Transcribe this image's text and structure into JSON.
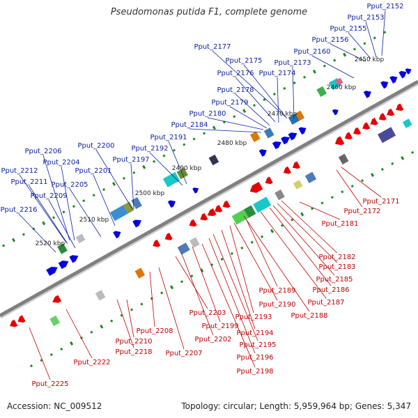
{
  "title": "Pseudomonas putida F1, complete genome",
  "footer": {
    "accession": "Accession: NC_009512",
    "topology": "Topology: circular; Length: 5,959,964 bp; Genes: 5,347"
  },
  "colors": {
    "backbone": "#808080",
    "forward": "#0000e0",
    "reverse": "#e60000",
    "tick": "#1a8a1a",
    "label_forward": "#0a1fa0",
    "label_reverse": "#c00000"
  },
  "kbp_labels": [
    "2450 kbp",
    "2460 kbp",
    "2470 kbp",
    "2480 kbp",
    "2490 kbp",
    "2500 kbp",
    "2510 kbp",
    "2520 kbp"
  ],
  "forward_labels": [
    "Pput_2152",
    "Pput_2153",
    "Pput_2155",
    "Pput_2156",
    "Pput_2160",
    "Pput_2177",
    "Pput_2175",
    "Pput_2173",
    "Pput_2176",
    "Pput_2174",
    "Pput_2178",
    "Pput_2179",
    "Pput_2180",
    "Pput_2184",
    "Pput_2191",
    "Pput_2192",
    "Pput_2200",
    "Pput_2197",
    "Pput_2206",
    "Pput_2204",
    "Pput_2201",
    "Pput_2212",
    "Pput_2211",
    "Pput_2205",
    "Pput_2209",
    "Pput_2216"
  ],
  "reverse_labels": [
    "Pput_2171",
    "Pput_2172",
    "Pput_2181",
    "Pput_2182",
    "Pput_2183",
    "Pput_2185",
    "Pput_2186",
    "Pput_2187",
    "Pput_2188",
    "Pput_2189",
    "Pput_2190",
    "Pput_2193",
    "Pput_2194",
    "Pput_2195",
    "Pput_2196",
    "Pput_2198",
    "Pput_2199",
    "Pput_2202",
    "Pput_2203",
    "Pput_2207",
    "Pput_2208",
    "Pput_2210",
    "Pput_2218",
    "Pput_2222",
    "Pput_2225"
  ]
}
